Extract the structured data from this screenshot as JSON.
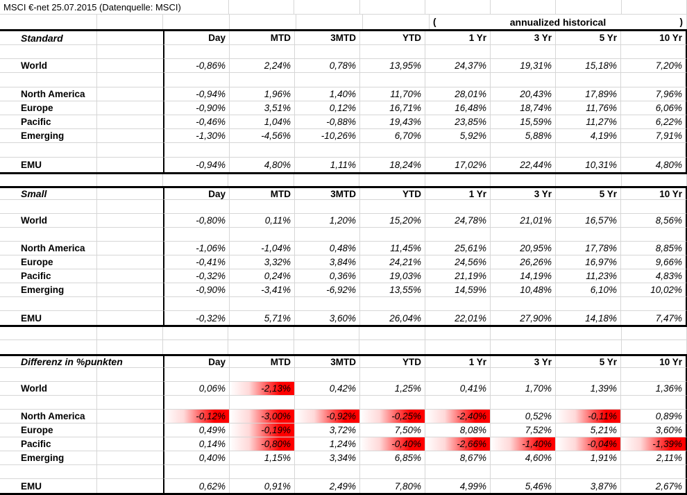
{
  "title": "MSCI €-net 25.07.2015 (Datenquelle: MSCI)",
  "annualized": {
    "open": "(",
    "label": "annualized historical",
    "close": ")"
  },
  "columns": [
    "Day",
    "MTD",
    "3MTD",
    "YTD",
    "1 Yr",
    "3 Yr",
    "5 Yr",
    "10 Yr"
  ],
  "highlight_color": "#FF0000",
  "gridline_color": "#D6D6D6",
  "tables": [
    {
      "name": "Standard",
      "rows": [
        {
          "label": "World",
          "values": [
            "-0,86%",
            "2,24%",
            "0,78%",
            "13,95%",
            "24,37%",
            "19,31%",
            "15,18%",
            "7,20%"
          ]
        },
        {
          "label": "North America",
          "values": [
            "-0,94%",
            "1,96%",
            "1,40%",
            "11,70%",
            "28,01%",
            "20,43%",
            "17,89%",
            "7,96%"
          ]
        },
        {
          "label": "Europe",
          "values": [
            "-0,90%",
            "3,51%",
            "0,12%",
            "16,71%",
            "16,48%",
            "18,74%",
            "11,76%",
            "6,06%"
          ]
        },
        {
          "label": "Pacific",
          "values": [
            "-0,46%",
            "1,04%",
            "-0,88%",
            "19,43%",
            "23,85%",
            "15,59%",
            "11,27%",
            "6,22%"
          ]
        },
        {
          "label": "Emerging",
          "values": [
            "-1,30%",
            "-4,56%",
            "-10,26%",
            "6,70%",
            "5,92%",
            "5,88%",
            "4,19%",
            "7,91%"
          ]
        },
        {
          "label": "EMU",
          "values": [
            "-0,94%",
            "4,80%",
            "1,11%",
            "18,24%",
            "17,02%",
            "22,44%",
            "10,31%",
            "4,80%"
          ]
        }
      ]
    },
    {
      "name": "Small",
      "rows": [
        {
          "label": "World",
          "values": [
            "-0,80%",
            "0,11%",
            "1,20%",
            "15,20%",
            "24,78%",
            "21,01%",
            "16,57%",
            "8,56%"
          ]
        },
        {
          "label": "North America",
          "values": [
            "-1,06%",
            "-1,04%",
            "0,48%",
            "11,45%",
            "25,61%",
            "20,95%",
            "17,78%",
            "8,85%"
          ]
        },
        {
          "label": "Europe",
          "values": [
            "-0,41%",
            "3,32%",
            "3,84%",
            "24,21%",
            "24,56%",
            "26,26%",
            "16,97%",
            "9,66%"
          ]
        },
        {
          "label": "Pacific",
          "values": [
            "-0,32%",
            "0,24%",
            "0,36%",
            "19,03%",
            "21,19%",
            "14,19%",
            "11,23%",
            "4,83%"
          ]
        },
        {
          "label": "Emerging",
          "values": [
            "-0,90%",
            "-3,41%",
            "-6,92%",
            "13,55%",
            "14,59%",
            "10,48%",
            "6,10%",
            "10,02%"
          ]
        },
        {
          "label": "EMU",
          "values": [
            "-0,32%",
            "5,71%",
            "3,60%",
            "26,04%",
            "22,01%",
            "27,90%",
            "14,18%",
            "7,47%"
          ]
        }
      ]
    },
    {
      "name": "Differenz in %punkten",
      "rows": [
        {
          "label": "World",
          "values": [
            "0,06%",
            "-2,13%",
            "0,42%",
            "1,25%",
            "0,41%",
            "1,70%",
            "1,39%",
            "1,36%"
          ],
          "highlight": [
            false,
            true,
            false,
            false,
            false,
            false,
            false,
            false
          ]
        },
        {
          "label": "North America",
          "values": [
            "-0,12%",
            "-3,00%",
            "-0,92%",
            "-0,25%",
            "-2,40%",
            "0,52%",
            "-0,11%",
            "0,89%"
          ],
          "highlight": [
            true,
            true,
            true,
            true,
            true,
            false,
            true,
            false
          ]
        },
        {
          "label": "Europe",
          "values": [
            "0,49%",
            "-0,19%",
            "3,72%",
            "7,50%",
            "8,08%",
            "7,52%",
            "5,21%",
            "3,60%"
          ],
          "highlight": [
            false,
            true,
            false,
            false,
            false,
            false,
            false,
            false
          ]
        },
        {
          "label": "Pacific",
          "values": [
            "0,14%",
            "-0,80%",
            "1,24%",
            "-0,40%",
            "-2,66%",
            "-1,40%",
            "-0,04%",
            "-1,39%"
          ],
          "highlight": [
            false,
            true,
            false,
            true,
            true,
            true,
            true,
            true
          ]
        },
        {
          "label": "Emerging",
          "values": [
            "0,40%",
            "1,15%",
            "3,34%",
            "6,85%",
            "8,67%",
            "4,60%",
            "1,91%",
            "2,11%"
          ],
          "highlight": [
            false,
            false,
            false,
            false,
            false,
            false,
            false,
            false
          ]
        },
        {
          "label": "EMU",
          "values": [
            "0,62%",
            "0,91%",
            "2,49%",
            "7,80%",
            "4,99%",
            "5,46%",
            "3,87%",
            "2,67%"
          ],
          "highlight": [
            false,
            false,
            false,
            false,
            false,
            false,
            false,
            false
          ]
        }
      ]
    }
  ]
}
